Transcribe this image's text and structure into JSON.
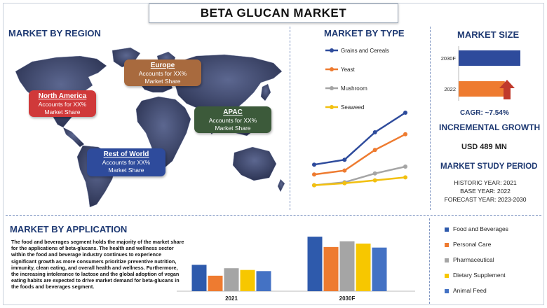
{
  "page_title": "BETA GLUCAN MARKET",
  "region": {
    "title": "MARKET BY REGION",
    "items": [
      {
        "name": "North America",
        "text1": "Accounts for XX%",
        "text2": "Market Share",
        "color": "#d0393a"
      },
      {
        "name": "Europe",
        "text1": "Accounts for XX%",
        "text2": "Market Share",
        "color": "#a86a3e"
      },
      {
        "name": "APAC",
        "text1": "Accounts for XX%",
        "text2": "Market Share",
        "color": "#3c5a3a"
      },
      {
        "name": "Rest of World",
        "text1": "Accounts for XX%",
        "text2": "Market Share",
        "color": "#2e4b9c"
      }
    ]
  },
  "type": {
    "title": "MARKET BY TYPE"
  },
  "size": {
    "title": "MARKET SIZE",
    "cagr": "CAGR:  ~7.54%",
    "growth_title": "INCREMENTAL GROWTH",
    "growth_value": "USD 489 MN",
    "study_title": "MARKET STUDY PERIOD",
    "historic": "HISTORIC YEAR: 2021",
    "base": "BASE YEAR: 2022",
    "forecast": "FORECAST YEAR: 2023-2030"
  },
  "application": {
    "title": "MARKET BY APPLICATION",
    "paragraph": "The food and beverages segment holds the majority of the market share for the applications of beta-glucans.  The health and wellness sector within the food and beverage industry continues to experience significant growth as more consumers prioritize preventive nutrition, immunity, clean eating, and overall health and wellness. Furthermore, the increasing intolerance to lactose and the global adoption of vegan eating habits are expected to drive market demand for beta-glucans in the foods and beverages segment."
  },
  "chart_data": [
    {
      "type": "line",
      "x": [
        "p1",
        "p2",
        "p3",
        "p4"
      ],
      "show_x_labels": false,
      "ylim": [
        0,
        10
      ],
      "series": [
        {
          "name": "Grains and Cereals",
          "values": [
            3.2,
            3.7,
            6.5,
            8.5
          ],
          "color": "#2e4b9c"
        },
        {
          "name": "Yeast",
          "values": [
            2.2,
            2.6,
            4.7,
            6.3
          ],
          "color": "#ee7b30"
        },
        {
          "name": "Mushroom",
          "values": [
            1.1,
            1.4,
            2.3,
            3.0
          ],
          "color": "#a5a5a5"
        },
        {
          "name": "Seaweed",
          "values": [
            1.1,
            1.3,
            1.6,
            1.9
          ],
          "color": "#f2c010"
        }
      ]
    },
    {
      "type": "bar",
      "orientation": "horizontal",
      "categories": [
        "2030F",
        "2022"
      ],
      "values": [
        8.3,
        6.2
      ],
      "colors": [
        "#2e4b9c",
        "#ee7b30"
      ],
      "xlim": [
        0,
        10
      ],
      "arrow_color": "#c0392b"
    },
    {
      "type": "bar",
      "categories": [
        "2021",
        "2030F"
      ],
      "ylim": [
        0,
        10
      ],
      "series": [
        {
          "name": "Food and Beverages",
          "values": [
            4.6,
            9.5
          ],
          "color": "#2e5aac"
        },
        {
          "name": "Personal Care",
          "values": [
            2.7,
            7.7
          ],
          "color": "#ee7b30"
        },
        {
          "name": "Pharmaceutical",
          "values": [
            4.0,
            8.7
          ],
          "color": "#a5a5a5"
        },
        {
          "name": "Dietary Supplement",
          "values": [
            3.7,
            8.3
          ],
          "color": "#f7c700"
        },
        {
          "name": "Animal Feed",
          "values": [
            3.5,
            7.6
          ],
          "color": "#4472c4"
        }
      ]
    }
  ]
}
